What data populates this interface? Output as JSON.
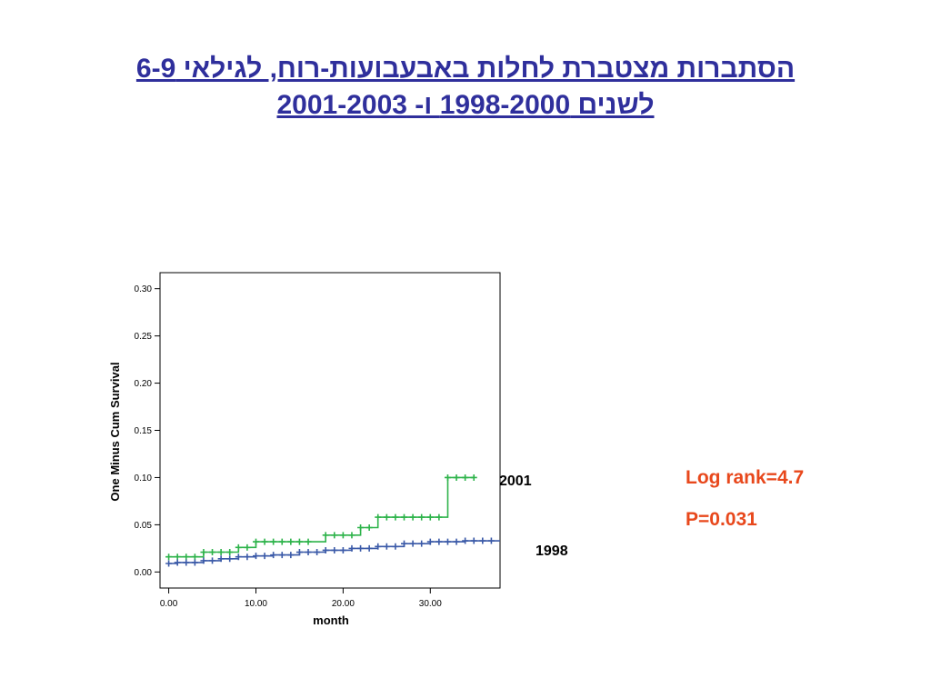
{
  "slide": {
    "title_line1": "הסתברות מצטברת לחלות באבעבועות-רוח, לגילאי 6-9",
    "title_line2": "לשנים 1998-2000 ו- 2001-2003",
    "log_rank": "Log rank=4.7",
    "p_value": "P=0.031",
    "colors": {
      "title": "#2f2f9c",
      "stats": "#e8481c",
      "series_2001": "#2db34a",
      "series_1998": "#3b5aa8"
    }
  },
  "chart_data": {
    "type": "line",
    "subtype": "step",
    "title": "",
    "xlabel": "month",
    "ylabel": "One Minus Cum Survival",
    "xlim": [
      -1,
      38
    ],
    "ylim": [
      -0.017,
      0.317
    ],
    "xticks": [
      0,
      10,
      20,
      30
    ],
    "xtick_labels": [
      "0.00",
      "10.00",
      "20.00",
      "30.00"
    ],
    "yticks": [
      0,
      0.05,
      0.1,
      0.15,
      0.2,
      0.25,
      0.3
    ],
    "ytick_labels": [
      "0.00",
      "0.05",
      "0.10",
      "0.15",
      "0.20",
      "0.25",
      "0.30"
    ],
    "grid": false,
    "series": [
      {
        "name": "2001",
        "color": "#2db34a",
        "steps": [
          [
            0,
            0.016
          ],
          [
            4,
            0.021
          ],
          [
            8,
            0.026
          ],
          [
            10,
            0.032
          ],
          [
            18,
            0.039
          ],
          [
            22,
            0.047
          ],
          [
            24,
            0.058
          ],
          [
            32,
            0.1
          ],
          [
            35,
            0.1
          ]
        ],
        "censored": [
          [
            0,
            0.016
          ],
          [
            1,
            0.016
          ],
          [
            2,
            0.016
          ],
          [
            3,
            0.016
          ],
          [
            4,
            0.021
          ],
          [
            5,
            0.021
          ],
          [
            6,
            0.021
          ],
          [
            7,
            0.021
          ],
          [
            8,
            0.026
          ],
          [
            9,
            0.026
          ],
          [
            10,
            0.032
          ],
          [
            11,
            0.032
          ],
          [
            12,
            0.032
          ],
          [
            13,
            0.032
          ],
          [
            14,
            0.032
          ],
          [
            15,
            0.032
          ],
          [
            16,
            0.032
          ],
          [
            18,
            0.039
          ],
          [
            19,
            0.039
          ],
          [
            20,
            0.039
          ],
          [
            21,
            0.039
          ],
          [
            22,
            0.047
          ],
          [
            23,
            0.047
          ],
          [
            24,
            0.058
          ],
          [
            25,
            0.058
          ],
          [
            26,
            0.058
          ],
          [
            27,
            0.058
          ],
          [
            28,
            0.058
          ],
          [
            29,
            0.058
          ],
          [
            30,
            0.058
          ],
          [
            31,
            0.058
          ],
          [
            32,
            0.1
          ],
          [
            33,
            0.1
          ],
          [
            34,
            0.1
          ],
          [
            35,
            0.1
          ]
        ]
      },
      {
        "name": "1998",
        "color": "#3b5aa8",
        "steps": [
          [
            0,
            0.009
          ],
          [
            1,
            0.01
          ],
          [
            4,
            0.012
          ],
          [
            6,
            0.014
          ],
          [
            8,
            0.016
          ],
          [
            10,
            0.017
          ],
          [
            12,
            0.018
          ],
          [
            15,
            0.021
          ],
          [
            18,
            0.023
          ],
          [
            21,
            0.025
          ],
          [
            24,
            0.027
          ],
          [
            27,
            0.03
          ],
          [
            30,
            0.032
          ],
          [
            34,
            0.033
          ],
          [
            38,
            0.033
          ]
        ],
        "censored": [
          [
            0,
            0.009
          ],
          [
            1,
            0.01
          ],
          [
            2,
            0.01
          ],
          [
            3,
            0.01
          ],
          [
            4,
            0.012
          ],
          [
            5,
            0.012
          ],
          [
            6,
            0.014
          ],
          [
            7,
            0.014
          ],
          [
            8,
            0.016
          ],
          [
            9,
            0.016
          ],
          [
            10,
            0.017
          ],
          [
            11,
            0.017
          ],
          [
            12,
            0.018
          ],
          [
            13,
            0.018
          ],
          [
            14,
            0.018
          ],
          [
            15,
            0.021
          ],
          [
            16,
            0.021
          ],
          [
            17,
            0.021
          ],
          [
            18,
            0.023
          ],
          [
            19,
            0.023
          ],
          [
            20,
            0.023
          ],
          [
            21,
            0.025
          ],
          [
            22,
            0.025
          ],
          [
            23,
            0.025
          ],
          [
            24,
            0.027
          ],
          [
            25,
            0.027
          ],
          [
            26,
            0.027
          ],
          [
            27,
            0.03
          ],
          [
            28,
            0.03
          ],
          [
            29,
            0.03
          ],
          [
            30,
            0.032
          ],
          [
            31,
            0.032
          ],
          [
            32,
            0.032
          ],
          [
            33,
            0.032
          ],
          [
            34,
            0.033
          ],
          [
            35,
            0.033
          ],
          [
            36,
            0.033
          ],
          [
            37,
            0.033
          ]
        ]
      }
    ]
  }
}
